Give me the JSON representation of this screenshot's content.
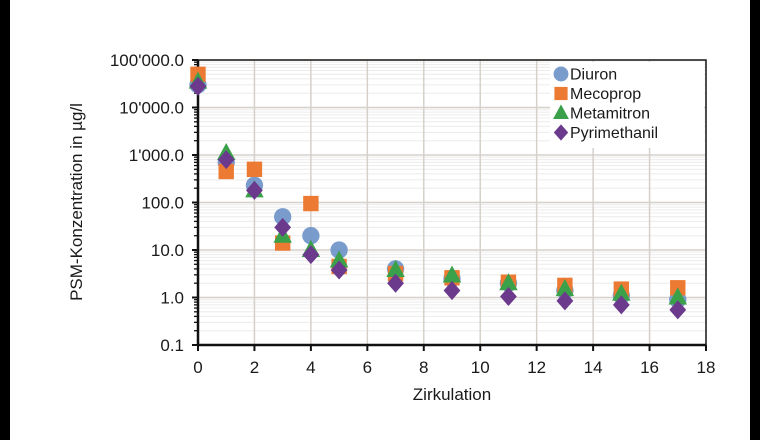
{
  "chart_data": {
    "type": "scatter",
    "title": "",
    "xlabel": "Zirkulation",
    "ylabel": "PSM-Konzentration in µg/l",
    "xlim": [
      0,
      18
    ],
    "ylim": [
      0.1,
      100000
    ],
    "yscale": "log",
    "xticks": [
      0,
      2,
      4,
      6,
      8,
      10,
      12,
      14,
      16,
      18
    ],
    "yticks": [
      0.1,
      1.0,
      10.0,
      100.0,
      1000.0,
      10000.0,
      100000.0
    ],
    "ytick_labels": [
      "0.1",
      "1.0",
      "10.0",
      "100.0",
      "1'000.0",
      "10'000.0",
      "100'000.0"
    ],
    "grid": true,
    "legend_position": "upper right",
    "x": [
      0,
      1,
      2,
      3,
      4,
      5,
      7,
      9,
      11,
      13,
      15,
      17
    ],
    "series": [
      {
        "name": "Diuron",
        "marker": "circle",
        "color": "#6f94c9",
        "values": [
          30000,
          700,
          230,
          50,
          20,
          10,
          4.0,
          2.5,
          2.0,
          1.4,
          1.1,
          0.9
        ]
      },
      {
        "name": "Mecoprop",
        "marker": "square",
        "color": "#ec7a32",
        "values": [
          50000,
          450,
          500,
          14,
          95,
          4.5,
          3.2,
          2.6,
          2.1,
          1.8,
          1.5,
          1.6
        ]
      },
      {
        "name": "Metamitron",
        "marker": "triangle",
        "color": "#3aa14a",
        "values": [
          35000,
          1100,
          180,
          20,
          10,
          6.0,
          3.8,
          2.9,
          2.0,
          1.5,
          1.2,
          1.0
        ]
      },
      {
        "name": "Pyrimethanil",
        "marker": "diamond",
        "color": "#6b3a8c",
        "values": [
          28000,
          800,
          180,
          30,
          8,
          3.8,
          2.0,
          1.4,
          1.05,
          0.85,
          0.7,
          0.55
        ]
      }
    ]
  }
}
